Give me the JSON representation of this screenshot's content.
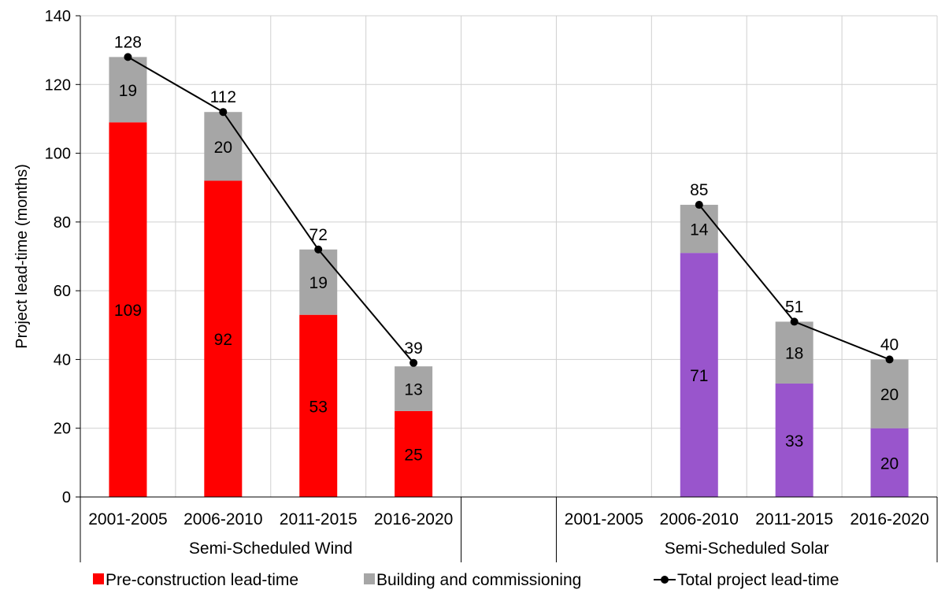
{
  "chart_data": {
    "type": "bar",
    "stacked": true,
    "title": "",
    "ylabel": "Project lead-time (months)",
    "ylim": [
      0,
      140
    ],
    "yticks": [
      0,
      20,
      40,
      60,
      80,
      100,
      120,
      140
    ],
    "grid": true,
    "legend_position": "bottom",
    "groups": [
      {
        "label": "Semi-Scheduled Wind",
        "categories": [
          "2001-2005",
          "2006-2010",
          "2011-2015",
          "2016-2020"
        ],
        "pre_construction": [
          109,
          92,
          53,
          25
        ],
        "building": [
          19,
          20,
          19,
          13
        ],
        "total": [
          128,
          112,
          72,
          39
        ],
        "pre_color": "#ff0000"
      },
      {
        "label": "Semi-Scheduled Solar",
        "categories": [
          "2001-2005",
          "2006-2010",
          "2011-2015",
          "2016-2020"
        ],
        "pre_construction": [
          null,
          71,
          33,
          20
        ],
        "building": [
          null,
          14,
          18,
          20
        ],
        "total": [
          null,
          85,
          51,
          40
        ],
        "pre_color": "#9955cc"
      }
    ],
    "series": [
      {
        "name": "Pre-construction lead-time",
        "color": "#ff0000"
      },
      {
        "name": "Building and commissioning",
        "color": "#a6a6a6"
      },
      {
        "name": "Total project lead-time",
        "color": "#000000"
      }
    ]
  }
}
